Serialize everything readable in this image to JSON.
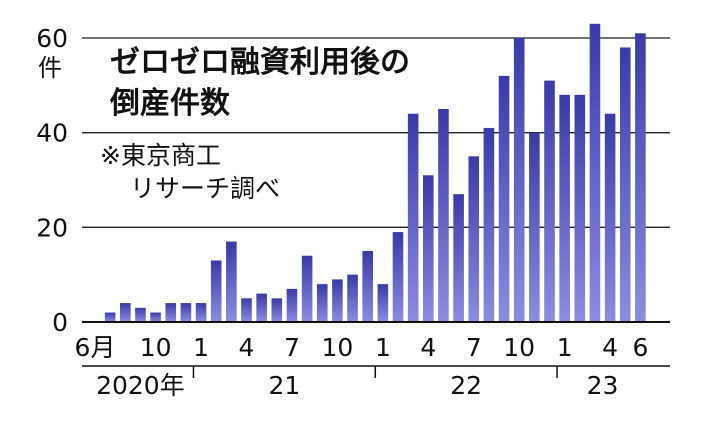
{
  "chart_data": {
    "type": "bar",
    "title": [
      "ゼロゼロ融資利用後の",
      "倒産件数"
    ],
    "source": [
      "※東京商工",
      "リサーチ調べ"
    ],
    "y_unit": "件",
    "ylim": [
      0,
      60
    ],
    "y_ticks": [
      0,
      20,
      40,
      60
    ],
    "grid": true,
    "bar_color": "#3a3aa8",
    "months": [
      "2020-06",
      "2020-07",
      "2020-08",
      "2020-09",
      "2020-10",
      "2020-11",
      "2020-12",
      "2021-01",
      "2021-02",
      "2021-03",
      "2021-04",
      "2021-05",
      "2021-06",
      "2021-07",
      "2021-08",
      "2021-09",
      "2021-10",
      "2021-11",
      "2021-12",
      "2022-01",
      "2022-02",
      "2022-03",
      "2022-04",
      "2022-05",
      "2022-06",
      "2022-07",
      "2022-08",
      "2022-09",
      "2022-10",
      "2022-11",
      "2022-12",
      "2023-01",
      "2023-02",
      "2023-03",
      "2023-04",
      "2023-05",
      "2023-06"
    ],
    "values": [
      0,
      2,
      4,
      3,
      2,
      4,
      4,
      4,
      13,
      17,
      5,
      6,
      5,
      7,
      14,
      8,
      9,
      10,
      15,
      8,
      19,
      44,
      31,
      45,
      27,
      35,
      41,
      52,
      60,
      40,
      51,
      48,
      48,
      63,
      44,
      58,
      61
    ],
    "x_tick_labels": [
      {
        "month": "2020-06",
        "label": "6月"
      },
      {
        "month": "2020-10",
        "label": "10"
      },
      {
        "month": "2021-01",
        "label": "1"
      },
      {
        "month": "2021-04",
        "label": "4"
      },
      {
        "month": "2021-07",
        "label": "7"
      },
      {
        "month": "2021-10",
        "label": "10"
      },
      {
        "month": "2022-01",
        "label": "1"
      },
      {
        "month": "2022-04",
        "label": "4"
      },
      {
        "month": "2022-07",
        "label": "7"
      },
      {
        "month": "2022-10",
        "label": "10"
      },
      {
        "month": "2023-01",
        "label": "1"
      },
      {
        "month": "2023-04",
        "label": "4"
      },
      {
        "month": "2023-06",
        "label": "6"
      }
    ],
    "year_groups": [
      {
        "label": "2020年",
        "start": "2020-06",
        "end": "2020-12"
      },
      {
        "label": "21",
        "start": "2021-01",
        "end": "2021-12"
      },
      {
        "label": "22",
        "start": "2022-01",
        "end": "2022-12"
      },
      {
        "label": "23",
        "start": "2023-01",
        "end": "2023-06"
      }
    ]
  }
}
